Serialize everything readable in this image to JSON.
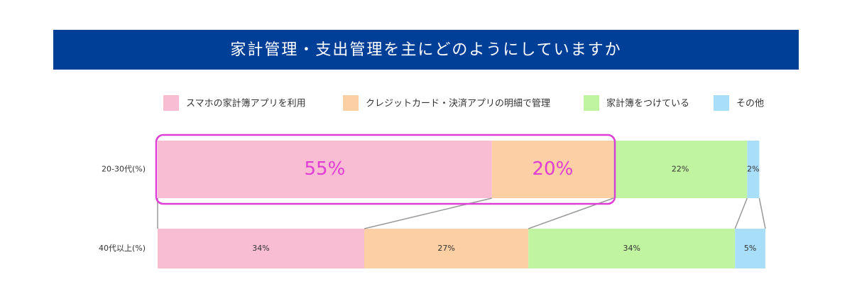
{
  "chart_data": {
    "type": "stacked_barh",
    "title": "家計管理・支出管理を主にどのようにしていますか",
    "categories": [
      "20-30代(%)",
      "40代以上(%)"
    ],
    "series": [
      {
        "name": "スマホの家計簿アプリを利用",
        "color": "#f9bdd3",
        "values": [
          55,
          34
        ],
        "value_labels": [
          "55%",
          "34%"
        ]
      },
      {
        "name": "クレジットカード・決済アプリの明細で管理",
        "color": "#fccfa4",
        "values": [
          20,
          27
        ],
        "value_labels": [
          "20%",
          "27%"
        ]
      },
      {
        "name": "家計簿をつけている",
        "color": "#c0f4a1",
        "values": [
          22,
          34
        ],
        "value_labels": [
          "22%",
          "34%"
        ]
      },
      {
        "name": "その他",
        "color": "#a8def7",
        "values": [
          2,
          5
        ],
        "value_labels": [
          "2%",
          "5%"
        ]
      }
    ],
    "xlim": [
      0,
      100
    ],
    "highlight": {
      "category": 0,
      "series": [
        0,
        1
      ],
      "color": "#e03cd6"
    }
  }
}
